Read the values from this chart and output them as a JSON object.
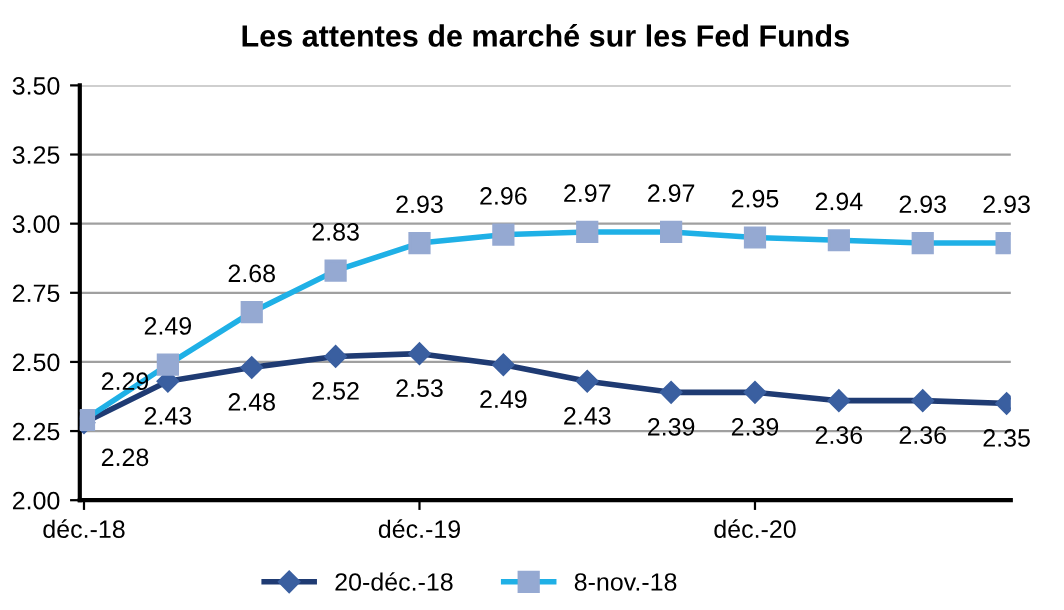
{
  "chart_data": {
    "type": "line",
    "title": "Les attentes de marché sur les Fed Funds",
    "categories": [
      "déc.-18",
      null,
      null,
      null,
      "déc.-19",
      null,
      null,
      null,
      "déc.-20",
      null,
      null,
      null
    ],
    "series": [
      {
        "name": "20-déc.-18",
        "color": "#1f3b73",
        "marker": "diamond",
        "values": [
          2.28,
          2.43,
          2.48,
          2.52,
          2.53,
          2.49,
          2.43,
          2.39,
          2.39,
          2.36,
          2.36,
          2.35
        ]
      },
      {
        "name": "8-nov.-18",
        "color": "#1fb0e6",
        "marker": "square",
        "values": [
          2.29,
          2.49,
          2.68,
          2.83,
          2.93,
          2.96,
          2.97,
          2.97,
          2.95,
          2.94,
          2.93,
          2.93
        ]
      }
    ],
    "ylim": [
      2.0,
      3.5
    ],
    "yticks": [
      {
        "value": 2.0,
        "label": "2.00"
      },
      {
        "value": 2.25,
        "label": "2.25"
      },
      {
        "value": 2.5,
        "label": "2.50"
      },
      {
        "value": 2.75,
        "label": "2.75"
      },
      {
        "value": 3.0,
        "label": "3.00"
      },
      {
        "value": 3.25,
        "label": "3.25"
      },
      {
        "value": 3.5,
        "label": "3.50"
      }
    ],
    "grid": "y",
    "legend": "bottom",
    "data_labels": true
  }
}
